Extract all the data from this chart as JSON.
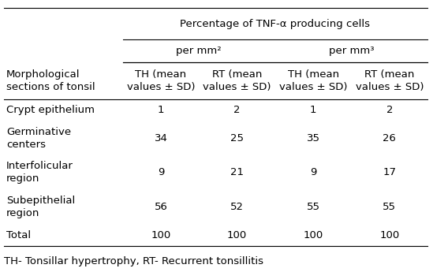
{
  "title": "Percentage of TNF-α producing cells",
  "subheader_left": "per mm²",
  "subheader_right": "per mm³",
  "col_header_row1": [
    "Morphological\nsections of tonsil",
    "TH (mean\nvalues ± SD)",
    "RT (mean\nvalues ± SD)",
    "TH (mean\nvalues ± SD)",
    "RT (mean\nvalues ± SD)"
  ],
  "rows": [
    [
      "Crypt epithelium",
      "1",
      "2",
      "1",
      "2"
    ],
    [
      "Germinative\ncenters",
      "34",
      "25",
      "35",
      "26"
    ],
    [
      "Interfolicular\nregion",
      "9",
      "21",
      "9",
      "17"
    ],
    [
      "Subepithelial\nregion",
      "56",
      "52",
      "55",
      "55"
    ],
    [
      "Total",
      "100",
      "100",
      "100",
      "100"
    ]
  ],
  "footnote": "TH- Tonsillar hypertrophy, RT- Recurrent tonsillitis",
  "bg_color": "#ffffff",
  "text_color": "#000000",
  "line_color": "#000000",
  "font_size": 9.5,
  "header_font_size": 9.5,
  "footnote_font_size": 9.5
}
